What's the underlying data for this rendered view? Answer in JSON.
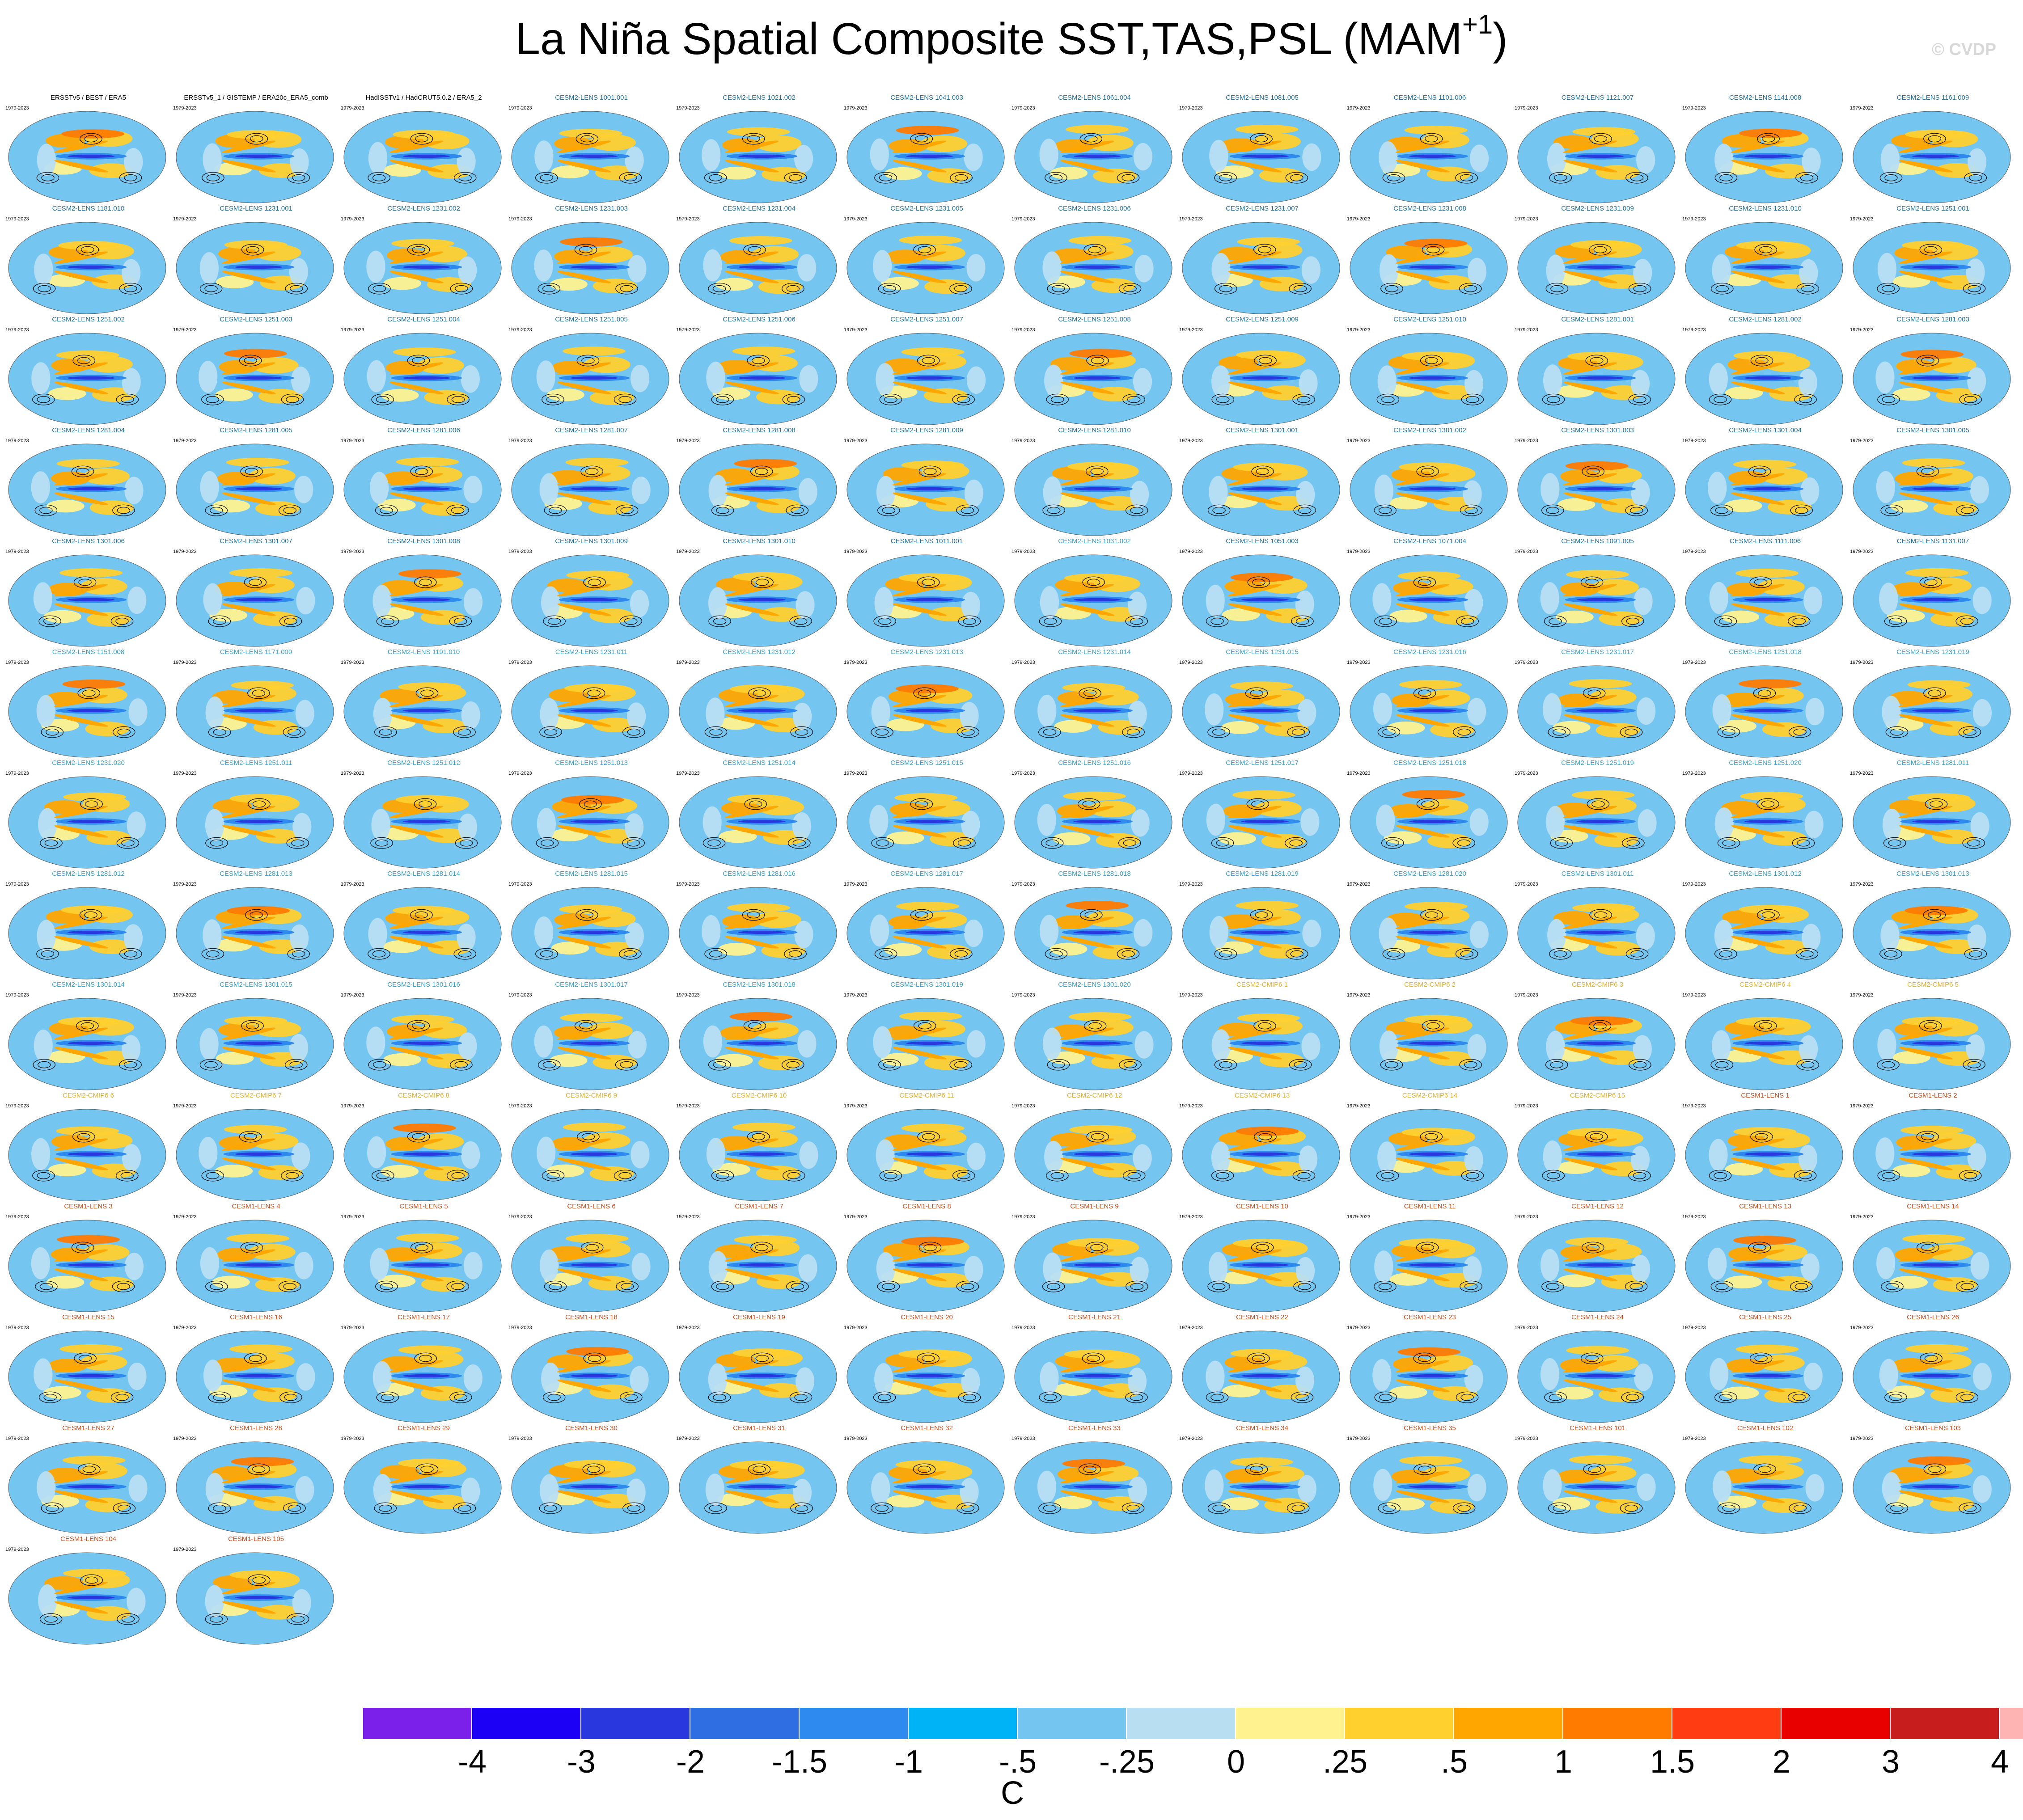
{
  "header": {
    "title": "La Niña Spatial Composite SST,TAS,PSL (MAM",
    "title_sup": "+1",
    "title_close": ")",
    "credit": "© CVDP"
  },
  "chart_data": {
    "type": "heatmap",
    "title": "La Niña Spatial Composite SST,TAS,PSL (MAM+1)",
    "year_range": "1979-2023",
    "colorbar": {
      "ticks": [
        "-4",
        "-3",
        "-2",
        "-1.5",
        "-1",
        "-.5",
        "-.25",
        "0",
        ".25",
        ".5",
        "1",
        "1.5",
        "2",
        "3",
        "4"
      ],
      "colors": [
        "#7b20ea",
        "#1c00f5",
        "#2838de",
        "#2f6de2",
        "#2f8af0",
        "#00b3f6",
        "#74c6f1",
        "#b8def2",
        "#fff28f",
        "#ffd02e",
        "#ffa700",
        "#ff7b00",
        "#ff3c12",
        "#e80000",
        "#c81d1d",
        "#ffb4b4"
      ],
      "units": "C"
    },
    "panels": [
      {
        "name": "ERSSTv5 / BEST / ERA5",
        "group": "obs"
      },
      {
        "name": "ERSSTv5_1 / GISTEMP / ERA20c_ERA5_comb",
        "group": "obs"
      },
      {
        "name": "HadISSTv1 / HadCRUT5.0.2 / ERA5_2",
        "group": "obs"
      },
      {
        "name": "CESM2-LENS 1001.001",
        "group": "lens2"
      },
      {
        "name": "CESM2-LENS 1021.002",
        "group": "lens2"
      },
      {
        "name": "CESM2-LENS 1041.003",
        "group": "lens2"
      },
      {
        "name": "CESM2-LENS 1061.004",
        "group": "lens2"
      },
      {
        "name": "CESM2-LENS 1081.005",
        "group": "lens2"
      },
      {
        "name": "CESM2-LENS 1101.006",
        "group": "lens2"
      },
      {
        "name": "CESM2-LENS 1121.007",
        "group": "lens2"
      },
      {
        "name": "CESM2-LENS 1141.008",
        "group": "lens2"
      },
      {
        "name": "CESM2-LENS 1161.009",
        "group": "lens2"
      },
      {
        "name": "CESM2-LENS 1181.010",
        "group": "lens2"
      },
      {
        "name": "CESM2-LENS 1231.001",
        "group": "lens2"
      },
      {
        "name": "CESM2-LENS 1231.002",
        "group": "lens2"
      },
      {
        "name": "CESM2-LENS 1231.003",
        "group": "lens2"
      },
      {
        "name": "CESM2-LENS 1231.004",
        "group": "lens2"
      },
      {
        "name": "CESM2-LENS 1231.005",
        "group": "lens2"
      },
      {
        "name": "CESM2-LENS 1231.006",
        "group": "lens2"
      },
      {
        "name": "CESM2-LENS 1231.007",
        "group": "lens2"
      },
      {
        "name": "CESM2-LENS 1231.008",
        "group": "lens2"
      },
      {
        "name": "CESM2-LENS 1231.009",
        "group": "lens2"
      },
      {
        "name": "CESM2-LENS 1231.010",
        "group": "lens2"
      },
      {
        "name": "CESM2-LENS 1251.001",
        "group": "lens2"
      },
      {
        "name": "CESM2-LENS 1251.002",
        "group": "lens2"
      },
      {
        "name": "CESM2-LENS 1251.003",
        "group": "lens2"
      },
      {
        "name": "CESM2-LENS 1251.004",
        "group": "lens2"
      },
      {
        "name": "CESM2-LENS 1251.005",
        "group": "lens2"
      },
      {
        "name": "CESM2-LENS 1251.006",
        "group": "lens2"
      },
      {
        "name": "CESM2-LENS 1251.007",
        "group": "lens2"
      },
      {
        "name": "CESM2-LENS 1251.008",
        "group": "lens2"
      },
      {
        "name": "CESM2-LENS 1251.009",
        "group": "lens2"
      },
      {
        "name": "CESM2-LENS 1251.010",
        "group": "lens2"
      },
      {
        "name": "CESM2-LENS 1281.001",
        "group": "lens2"
      },
      {
        "name": "CESM2-LENS 1281.002",
        "group": "lens2"
      },
      {
        "name": "CESM2-LENS 1281.003",
        "group": "lens2"
      },
      {
        "name": "CESM2-LENS 1281.004",
        "group": "lens2"
      },
      {
        "name": "CESM2-LENS 1281.005",
        "group": "lens2"
      },
      {
        "name": "CESM2-LENS 1281.006",
        "group": "lens2"
      },
      {
        "name": "CESM2-LENS 1281.007",
        "group": "lens2"
      },
      {
        "name": "CESM2-LENS 1281.008",
        "group": "lens2"
      },
      {
        "name": "CESM2-LENS 1281.009",
        "group": "lens2"
      },
      {
        "name": "CESM2-LENS 1281.010",
        "group": "lens2"
      },
      {
        "name": "CESM2-LENS 1301.001",
        "group": "lens2"
      },
      {
        "name": "CESM2-LENS 1301.002",
        "group": "lens2"
      },
      {
        "name": "CESM2-LENS 1301.003",
        "group": "lens2"
      },
      {
        "name": "CESM2-LENS 1301.004",
        "group": "lens2"
      },
      {
        "name": "CESM2-LENS 1301.005",
        "group": "lens2"
      },
      {
        "name": "CESM2-LENS 1301.006",
        "group": "lens2"
      },
      {
        "name": "CESM2-LENS 1301.007",
        "group": "lens2"
      },
      {
        "name": "CESM2-LENS 1301.008",
        "group": "lens2"
      },
      {
        "name": "CESM2-LENS 1301.009",
        "group": "lens2"
      },
      {
        "name": "CESM2-LENS 1301.010",
        "group": "lens2"
      },
      {
        "name": "CESM2-LENS 1011.001",
        "group": "lens2"
      },
      {
        "name": "CESM2-LENS 1031.002",
        "group": "lens2b"
      },
      {
        "name": "CESM2-LENS 1051.003",
        "group": "lens2"
      },
      {
        "name": "CESM2-LENS 1071.004",
        "group": "lens2"
      },
      {
        "name": "CESM2-LENS 1091.005",
        "group": "lens2"
      },
      {
        "name": "CESM2-LENS 1111.006",
        "group": "lens2"
      },
      {
        "name": "CESM2-LENS 1131.007",
        "group": "lens2"
      },
      {
        "name": "CESM2-LENS 1151.008",
        "group": "lens2b"
      },
      {
        "name": "CESM2-LENS 1171.009",
        "group": "lens2b"
      },
      {
        "name": "CESM2-LENS 1191.010",
        "group": "lens2b"
      },
      {
        "name": "CESM2-LENS 1231.011",
        "group": "lens2b"
      },
      {
        "name": "CESM2-LENS 1231.012",
        "group": "lens2b"
      },
      {
        "name": "CESM2-LENS 1231.013",
        "group": "lens2b"
      },
      {
        "name": "CESM2-LENS 1231.014",
        "group": "lens2b"
      },
      {
        "name": "CESM2-LENS 1231.015",
        "group": "lens2b"
      },
      {
        "name": "CESM2-LENS 1231.016",
        "group": "lens2b"
      },
      {
        "name": "CESM2-LENS 1231.017",
        "group": "lens2b"
      },
      {
        "name": "CESM2-LENS 1231.018",
        "group": "lens2b"
      },
      {
        "name": "CESM2-LENS 1231.019",
        "group": "lens2b"
      },
      {
        "name": "CESM2-LENS 1231.020",
        "group": "lens2b"
      },
      {
        "name": "CESM2-LENS 1251.011",
        "group": "lens2b"
      },
      {
        "name": "CESM2-LENS 1251.012",
        "group": "lens2b"
      },
      {
        "name": "CESM2-LENS 1251.013",
        "group": "lens2b"
      },
      {
        "name": "CESM2-LENS 1251.014",
        "group": "lens2b"
      },
      {
        "name": "CESM2-LENS 1251.015",
        "group": "lens2b"
      },
      {
        "name": "CESM2-LENS 1251.016",
        "group": "lens2b"
      },
      {
        "name": "CESM2-LENS 1251.017",
        "group": "lens2b"
      },
      {
        "name": "CESM2-LENS 1251.018",
        "group": "lens2b"
      },
      {
        "name": "CESM2-LENS 1251.019",
        "group": "lens2b"
      },
      {
        "name": "CESM2-LENS 1251.020",
        "group": "lens2b"
      },
      {
        "name": "CESM2-LENS 1281.011",
        "group": "lens2b"
      },
      {
        "name": "CESM2-LENS 1281.012",
        "group": "lens2b"
      },
      {
        "name": "CESM2-LENS 1281.013",
        "group": "lens2b"
      },
      {
        "name": "CESM2-LENS 1281.014",
        "group": "lens2b"
      },
      {
        "name": "CESM2-LENS 1281.015",
        "group": "lens2b"
      },
      {
        "name": "CESM2-LENS 1281.016",
        "group": "lens2b"
      },
      {
        "name": "CESM2-LENS 1281.017",
        "group": "lens2b"
      },
      {
        "name": "CESM2-LENS 1281.018",
        "group": "lens2b"
      },
      {
        "name": "CESM2-LENS 1281.019",
        "group": "lens2b"
      },
      {
        "name": "CESM2-LENS 1281.020",
        "group": "lens2b"
      },
      {
        "name": "CESM2-LENS 1301.011",
        "group": "lens2b"
      },
      {
        "name": "CESM2-LENS 1301.012",
        "group": "lens2b"
      },
      {
        "name": "CESM2-LENS 1301.013",
        "group": "lens2b"
      },
      {
        "name": "CESM2-LENS 1301.014",
        "group": "lens2b"
      },
      {
        "name": "CESM2-LENS 1301.015",
        "group": "lens2b"
      },
      {
        "name": "CESM2-LENS 1301.016",
        "group": "lens2b"
      },
      {
        "name": "CESM2-LENS 1301.017",
        "group": "lens2b"
      },
      {
        "name": "CESM2-LENS 1301.018",
        "group": "lens2b"
      },
      {
        "name": "CESM2-LENS 1301.019",
        "group": "lens2b"
      },
      {
        "name": "CESM2-LENS 1301.020",
        "group": "lens2b"
      },
      {
        "name": "CESM2-CMIP6 1",
        "group": "cmip6"
      },
      {
        "name": "CESM2-CMIP6 2",
        "group": "cmip6"
      },
      {
        "name": "CESM2-CMIP6 3",
        "group": "cmip6"
      },
      {
        "name": "CESM2-CMIP6 4",
        "group": "cmip6"
      },
      {
        "name": "CESM2-CMIP6 5",
        "group": "cmip6"
      },
      {
        "name": "CESM2-CMIP6 6",
        "group": "cmip6"
      },
      {
        "name": "CESM2-CMIP6 7",
        "group": "cmip6"
      },
      {
        "name": "CESM2-CMIP6 8",
        "group": "cmip6"
      },
      {
        "name": "CESM2-CMIP6 9",
        "group": "cmip6"
      },
      {
        "name": "CESM2-CMIP6 10",
        "group": "cmip6"
      },
      {
        "name": "CESM2-CMIP6 11",
        "group": "cmip6"
      },
      {
        "name": "CESM2-CMIP6 12",
        "group": "cmip6"
      },
      {
        "name": "CESM2-CMIP6 13",
        "group": "cmip6"
      },
      {
        "name": "CESM2-CMIP6 14",
        "group": "cmip6"
      },
      {
        "name": "CESM2-CMIP6 15",
        "group": "cmip6"
      },
      {
        "name": "CESM1-LENS 1",
        "group": "lens1"
      },
      {
        "name": "CESM1-LENS 2",
        "group": "lens1"
      },
      {
        "name": "CESM1-LENS 3",
        "group": "lens1"
      },
      {
        "name": "CESM1-LENS 4",
        "group": "lens1"
      },
      {
        "name": "CESM1-LENS 5",
        "group": "lens1"
      },
      {
        "name": "CESM1-LENS 6",
        "group": "lens1"
      },
      {
        "name": "CESM1-LENS 7",
        "group": "lens1"
      },
      {
        "name": "CESM1-LENS 8",
        "group": "lens1"
      },
      {
        "name": "CESM1-LENS 9",
        "group": "lens1"
      },
      {
        "name": "CESM1-LENS 10",
        "group": "lens1"
      },
      {
        "name": "CESM1-LENS 11",
        "group": "lens1"
      },
      {
        "name": "CESM1-LENS 12",
        "group": "lens1"
      },
      {
        "name": "CESM1-LENS 13",
        "group": "lens1"
      },
      {
        "name": "CESM1-LENS 14",
        "group": "lens1"
      },
      {
        "name": "CESM1-LENS 15",
        "group": "lens1"
      },
      {
        "name": "CESM1-LENS 16",
        "group": "lens1"
      },
      {
        "name": "CESM1-LENS 17",
        "group": "lens1"
      },
      {
        "name": "CESM1-LENS 18",
        "group": "lens1"
      },
      {
        "name": "CESM1-LENS 19",
        "group": "lens1"
      },
      {
        "name": "CESM1-LENS 20",
        "group": "lens1"
      },
      {
        "name": "CESM1-LENS 21",
        "group": "lens1"
      },
      {
        "name": "CESM1-LENS 22",
        "group": "lens1"
      },
      {
        "name": "CESM1-LENS 23",
        "group": "lens1"
      },
      {
        "name": "CESM1-LENS 24",
        "group": "lens1"
      },
      {
        "name": "CESM1-LENS 25",
        "group": "lens1"
      },
      {
        "name": "CESM1-LENS 26",
        "group": "lens1"
      },
      {
        "name": "CESM1-LENS 27",
        "group": "lens1"
      },
      {
        "name": "CESM1-LENS 28",
        "group": "lens1"
      },
      {
        "name": "CESM1-LENS 29",
        "group": "lens1"
      },
      {
        "name": "CESM1-LENS 30",
        "group": "lens1"
      },
      {
        "name": "CESM1-LENS 31",
        "group": "lens1"
      },
      {
        "name": "CESM1-LENS 32",
        "group": "lens1"
      },
      {
        "name": "CESM1-LENS 33",
        "group": "lens1"
      },
      {
        "name": "CESM1-LENS 34",
        "group": "lens1"
      },
      {
        "name": "CESM1-LENS 35",
        "group": "lens1"
      },
      {
        "name": "CESM1-LENS 101",
        "group": "lens1"
      },
      {
        "name": "CESM1-LENS 102",
        "group": "lens1"
      },
      {
        "name": "CESM1-LENS 103",
        "group": "lens1"
      },
      {
        "name": "CESM1-LENS 104",
        "group": "lens1"
      },
      {
        "name": "CESM1-LENS 105",
        "group": "lens1"
      }
    ],
    "group_colors": {
      "obs": "#000000",
      "lens2": "#1f6f9a",
      "lens2b": "#3aa0c8",
      "cmip6": "#e0b030",
      "lens1": "#c84a1a"
    }
  }
}
